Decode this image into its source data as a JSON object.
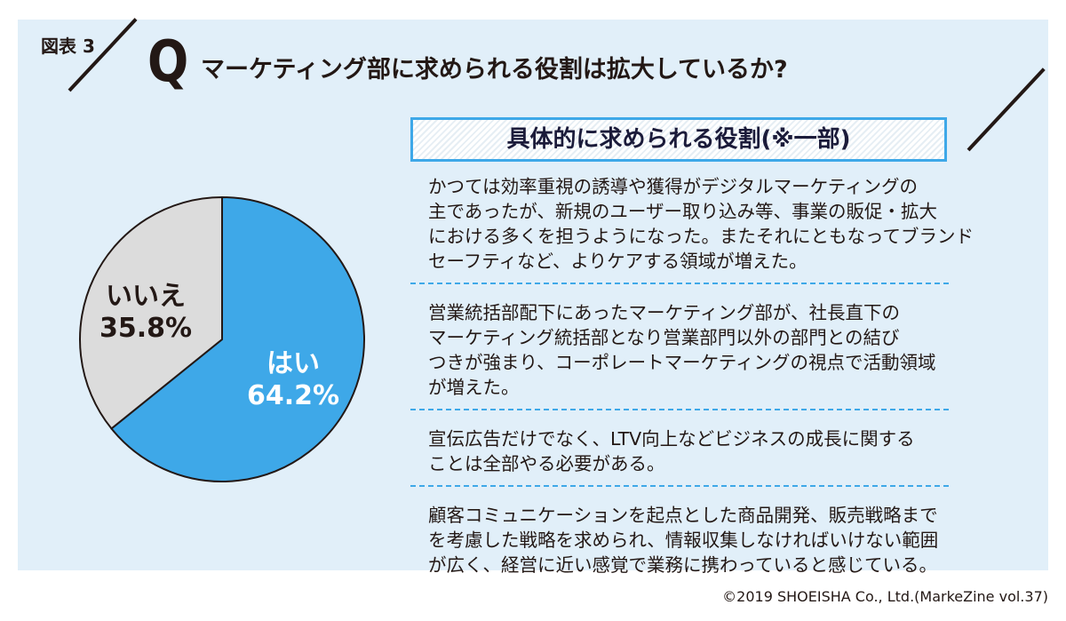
{
  "figure_label": "図表 3",
  "question_mark": "Q",
  "title": "マーケティング部に求められる役割は拡大しているか?",
  "box_title": "具体的に求められる役割(※一部)",
  "roles": [
    {
      "lines": [
        "かつては効率重視の誘導や獲得がデジタルマーケティングの",
        "主であったが、新規のユーザー取り込み等、事業の販促・拡大",
        "における多くを担うようになった。またそれにともなってブランド",
        "セーフティなど、よりケアする領域が増えた。"
      ]
    },
    {
      "lines": [
        "営業統括部配下にあったマーケティング部が、社長直下の",
        "マーケティング統括部となり営業部門以外の部門との結び",
        "つきが強まり、コーポレートマーケティングの視点で活動領域",
        "が増えた。"
      ]
    },
    {
      "lines": [
        "宣伝広告だけでなく、LTV向上などビジネスの成長に関する",
        "ことは全部やる必要がある。"
      ]
    },
    {
      "lines": [
        "顧客コミュニケーションを起点とした商品開発、販売戦略まで",
        "を考慮した戦略を求められ、情報収集しなければいけない範囲",
        "が広く、経営に近い感覚で業務に携わっていると感じている。"
      ]
    }
  ],
  "copyright": "©2019 SHOEISHA Co., Ltd.(MarkeZine vol.37)",
  "chart_data": {
    "type": "pie",
    "title": "マーケティング部に求められる役割は拡大しているか?",
    "slices": [
      {
        "label": "はい",
        "value": 64.2,
        "value_label": "64.2%",
        "color": "#3ea8e8",
        "text_color": "#ffffff"
      },
      {
        "label": "いいえ",
        "value": 35.8,
        "value_label": "35.8%",
        "color": "#dcdcdc",
        "text_color": "#231815"
      }
    ],
    "start": "12 o'clock, clockwise"
  }
}
